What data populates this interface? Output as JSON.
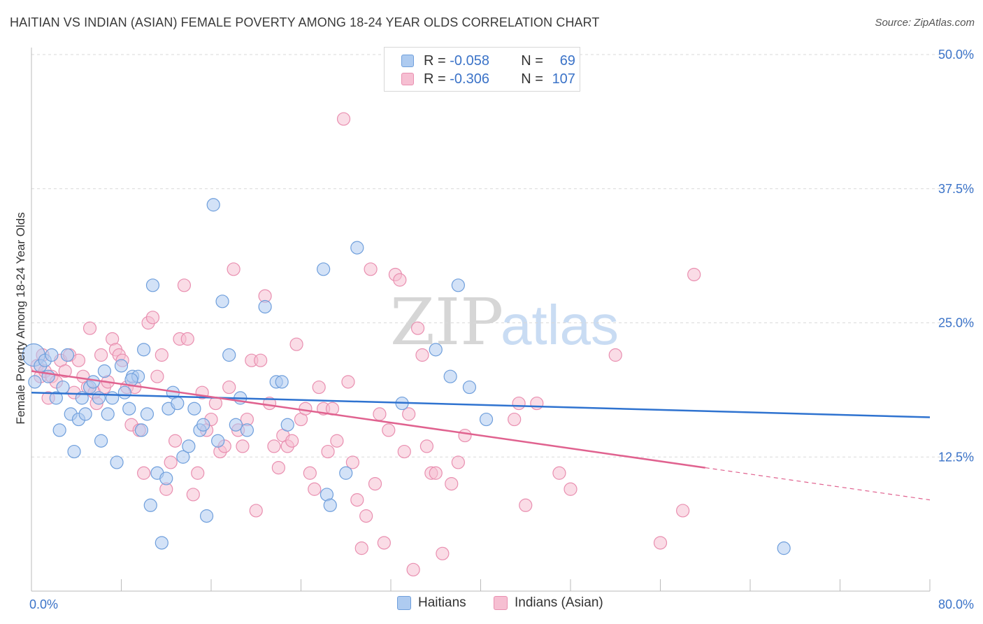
{
  "title": "HAITIAN VS INDIAN (ASIAN) FEMALE POVERTY AMONG 18-24 YEAR OLDS CORRELATION CHART",
  "source": "Source: ZipAtlas.com",
  "watermark": {
    "zip": "ZIP",
    "atlas": "atlas"
  },
  "legend": {
    "r_label": "R =",
    "n_label": "N =",
    "haitians": {
      "r": "-0.058",
      "n": "69"
    },
    "indians": {
      "r": "-0.306",
      "n": "107"
    }
  },
  "bottom_legend": {
    "haitians": "Haitians",
    "indians": "Indians (Asian)"
  },
  "colors": {
    "haitians_fill": "#aecbf0",
    "haitians_stroke": "#6f9fdc",
    "haitians_line": "#2f73d0",
    "indians_fill": "#f6bfd2",
    "indians_stroke": "#e98fb0",
    "indians_line": "#e0628f",
    "tick_label": "#3b73c8",
    "grid": "#d9d9d9"
  },
  "chart_data": {
    "type": "scatter",
    "title": "HAITIAN VS INDIAN (ASIAN) FEMALE POVERTY AMONG 18-24 YEAR OLDS CORRELATION CHART",
    "xlabel": "",
    "ylabel": "Female Poverty Among 18-24 Year Olds",
    "xlim": [
      0,
      80
    ],
    "ylim": [
      0,
      50
    ],
    "x_tick_labels": [
      "0.0%",
      "80.0%"
    ],
    "y_ticks": [
      12.5,
      25.0,
      37.5,
      50.0
    ],
    "y_tick_labels": [
      "12.5%",
      "25.0%",
      "37.5%",
      "50.0%"
    ],
    "grid": true,
    "legend_position": "top-center",
    "series": [
      {
        "name": "Haitians",
        "r": -0.058,
        "n": 69,
        "trend": {
          "x": [
            0,
            80
          ],
          "y": [
            18.5,
            16.2
          ]
        },
        "points": [
          [
            0.2,
            22.0
          ],
          [
            0.3,
            19.5
          ],
          [
            0.8,
            21.0
          ],
          [
            1.2,
            21.5
          ],
          [
            1.5,
            20.0
          ],
          [
            1.8,
            22.0
          ],
          [
            2.2,
            18.0
          ],
          [
            2.5,
            15.0
          ],
          [
            2.8,
            19.0
          ],
          [
            3.2,
            22.0
          ],
          [
            3.5,
            16.5
          ],
          [
            3.8,
            13.0
          ],
          [
            4.2,
            16.0
          ],
          [
            4.5,
            18.0
          ],
          [
            4.8,
            16.5
          ],
          [
            5.2,
            19.0
          ],
          [
            5.5,
            19.5
          ],
          [
            6.0,
            18.0
          ],
          [
            6.2,
            14.0
          ],
          [
            6.5,
            20.5
          ],
          [
            6.8,
            16.5
          ],
          [
            7.2,
            18.0
          ],
          [
            7.6,
            12.0
          ],
          [
            8.0,
            21.0
          ],
          [
            8.3,
            18.5
          ],
          [
            8.7,
            17.0
          ],
          [
            9.0,
            20.0
          ],
          [
            9.5,
            20.0
          ],
          [
            9.8,
            15.0
          ],
          [
            10.0,
            22.5
          ],
          [
            10.3,
            16.5
          ],
          [
            10.6,
            8.0
          ],
          [
            10.8,
            28.5
          ],
          [
            11.2,
            11.0
          ],
          [
            11.6,
            4.5
          ],
          [
            12.0,
            10.5
          ],
          [
            12.2,
            17.0
          ],
          [
            12.6,
            18.5
          ],
          [
            13.0,
            17.5
          ],
          [
            13.5,
            12.5
          ],
          [
            14.0,
            13.5
          ],
          [
            14.5,
            17.0
          ],
          [
            15.0,
            15.0
          ],
          [
            15.3,
            15.5
          ],
          [
            15.6,
            7.0
          ],
          [
            16.2,
            36.0
          ],
          [
            16.6,
            14.0
          ],
          [
            17.0,
            27.0
          ],
          [
            17.6,
            22.0
          ],
          [
            18.2,
            15.5
          ],
          [
            18.6,
            18.0
          ],
          [
            19.2,
            15.0
          ],
          [
            20.8,
            26.5
          ],
          [
            21.8,
            19.5
          ],
          [
            22.3,
            19.5
          ],
          [
            22.8,
            15.5
          ],
          [
            26.0,
            30.0
          ],
          [
            26.3,
            9.0
          ],
          [
            26.6,
            8.0
          ],
          [
            28.0,
            11.0
          ],
          [
            29.0,
            32.0
          ],
          [
            33.0,
            17.5
          ],
          [
            36.0,
            22.5
          ],
          [
            37.3,
            20.0
          ],
          [
            38.0,
            28.5
          ],
          [
            39.0,
            19.0
          ],
          [
            40.5,
            16.0
          ],
          [
            67.0,
            4.0
          ],
          [
            8.9,
            19.7
          ]
        ]
      },
      {
        "name": "Indians (Asian)",
        "r": -0.306,
        "n": 107,
        "trend": {
          "x": [
            0,
            60
          ],
          "y": [
            20.5,
            11.5
          ]
        },
        "trend_dashed": {
          "x": [
            60,
            80
          ],
          "y": [
            11.5,
            8.5
          ]
        },
        "points": [
          [
            0.5,
            21.0
          ],
          [
            0.8,
            20.0
          ],
          [
            1.0,
            22.0
          ],
          [
            1.2,
            20.5
          ],
          [
            1.5,
            18.0
          ],
          [
            1.8,
            20.0
          ],
          [
            2.2,
            19.5
          ],
          [
            2.6,
            21.5
          ],
          [
            3.0,
            20.5
          ],
          [
            3.4,
            22.0
          ],
          [
            3.8,
            18.5
          ],
          [
            4.2,
            21.5
          ],
          [
            4.6,
            20.0
          ],
          [
            5.0,
            19.0
          ],
          [
            5.2,
            24.5
          ],
          [
            5.6,
            18.5
          ],
          [
            5.8,
            17.5
          ],
          [
            6.2,
            22.0
          ],
          [
            6.5,
            19.0
          ],
          [
            6.8,
            19.5
          ],
          [
            7.2,
            23.5
          ],
          [
            7.5,
            22.5
          ],
          [
            7.8,
            22.0
          ],
          [
            8.1,
            21.5
          ],
          [
            8.5,
            19.0
          ],
          [
            8.9,
            15.5
          ],
          [
            9.2,
            19.0
          ],
          [
            9.6,
            15.0
          ],
          [
            10.0,
            11.0
          ],
          [
            10.4,
            25.0
          ],
          [
            10.8,
            25.5
          ],
          [
            11.2,
            20.0
          ],
          [
            11.6,
            22.0
          ],
          [
            12.0,
            9.5
          ],
          [
            12.4,
            12.0
          ],
          [
            12.8,
            14.0
          ],
          [
            13.2,
            23.5
          ],
          [
            13.6,
            28.5
          ],
          [
            13.9,
            23.5
          ],
          [
            14.4,
            9.0
          ],
          [
            14.8,
            11.0
          ],
          [
            15.2,
            18.5
          ],
          [
            15.6,
            15.0
          ],
          [
            16.0,
            16.0
          ],
          [
            16.4,
            17.5
          ],
          [
            16.8,
            13.0
          ],
          [
            17.2,
            13.5
          ],
          [
            17.6,
            19.0
          ],
          [
            18.0,
            30.0
          ],
          [
            18.4,
            15.0
          ],
          [
            18.8,
            13.5
          ],
          [
            19.2,
            16.0
          ],
          [
            19.6,
            21.5
          ],
          [
            20.0,
            7.5
          ],
          [
            20.4,
            21.5
          ],
          [
            20.8,
            27.5
          ],
          [
            21.2,
            17.5
          ],
          [
            21.6,
            13.5
          ],
          [
            22.0,
            11.5
          ],
          [
            22.4,
            14.5
          ],
          [
            22.8,
            13.5
          ],
          [
            23.2,
            14.0
          ],
          [
            23.6,
            23.0
          ],
          [
            24.0,
            16.0
          ],
          [
            24.4,
            17.0
          ],
          [
            24.8,
            11.0
          ],
          [
            25.2,
            9.5
          ],
          [
            25.6,
            19.0
          ],
          [
            26.0,
            17.0
          ],
          [
            26.4,
            13.0
          ],
          [
            26.8,
            17.0
          ],
          [
            27.2,
            14.0
          ],
          [
            27.8,
            44.0
          ],
          [
            28.2,
            19.5
          ],
          [
            28.6,
            12.0
          ],
          [
            29.0,
            8.5
          ],
          [
            29.4,
            4.0
          ],
          [
            29.8,
            7.0
          ],
          [
            30.2,
            30.0
          ],
          [
            30.6,
            10.0
          ],
          [
            31.0,
            16.5
          ],
          [
            31.4,
            4.5
          ],
          [
            31.8,
            15.0
          ],
          [
            32.4,
            29.5
          ],
          [
            32.8,
            29.0
          ],
          [
            33.2,
            13.0
          ],
          [
            33.6,
            16.5
          ],
          [
            34.0,
            2.0
          ],
          [
            34.4,
            24.5
          ],
          [
            34.8,
            22.0
          ],
          [
            35.2,
            13.5
          ],
          [
            35.6,
            11.0
          ],
          [
            36.0,
            11.0
          ],
          [
            36.6,
            3.5
          ],
          [
            37.4,
            10.0
          ],
          [
            38.0,
            12.0
          ],
          [
            38.6,
            14.5
          ],
          [
            43.0,
            16.0
          ],
          [
            43.4,
            17.5
          ],
          [
            44.0,
            8.0
          ],
          [
            45.0,
            17.5
          ],
          [
            47.0,
            11.0
          ],
          [
            48.0,
            9.5
          ],
          [
            52.0,
            22.0
          ],
          [
            56.0,
            4.5
          ],
          [
            58.0,
            7.5
          ],
          [
            59.0,
            29.5
          ]
        ]
      }
    ]
  }
}
